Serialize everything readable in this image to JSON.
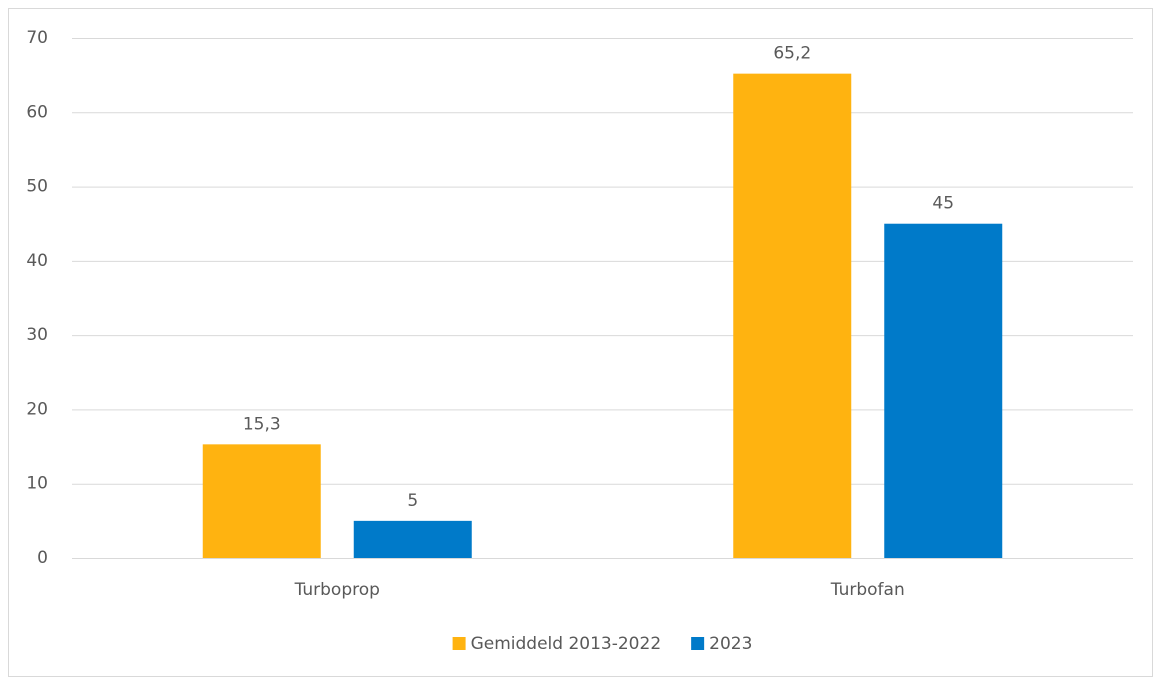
{
  "chart_data": {
    "type": "bar",
    "categories": [
      "Turboprop",
      "Turbofan"
    ],
    "series": [
      {
        "name": "Gemiddeld 2013-2022",
        "color": "#ffb310",
        "values": [
          15.3,
          65.2
        ],
        "value_labels": [
          "15,3",
          "65,2"
        ]
      },
      {
        "name": "2023",
        "color": "#007ac9",
        "values": [
          5,
          45
        ],
        "value_labels": [
          "5",
          "45"
        ]
      }
    ],
    "ylim": [
      0,
      70
    ],
    "yticks": [
      0,
      10,
      20,
      30,
      40,
      50,
      60,
      70
    ],
    "grid": true,
    "legend": "bottom"
  }
}
